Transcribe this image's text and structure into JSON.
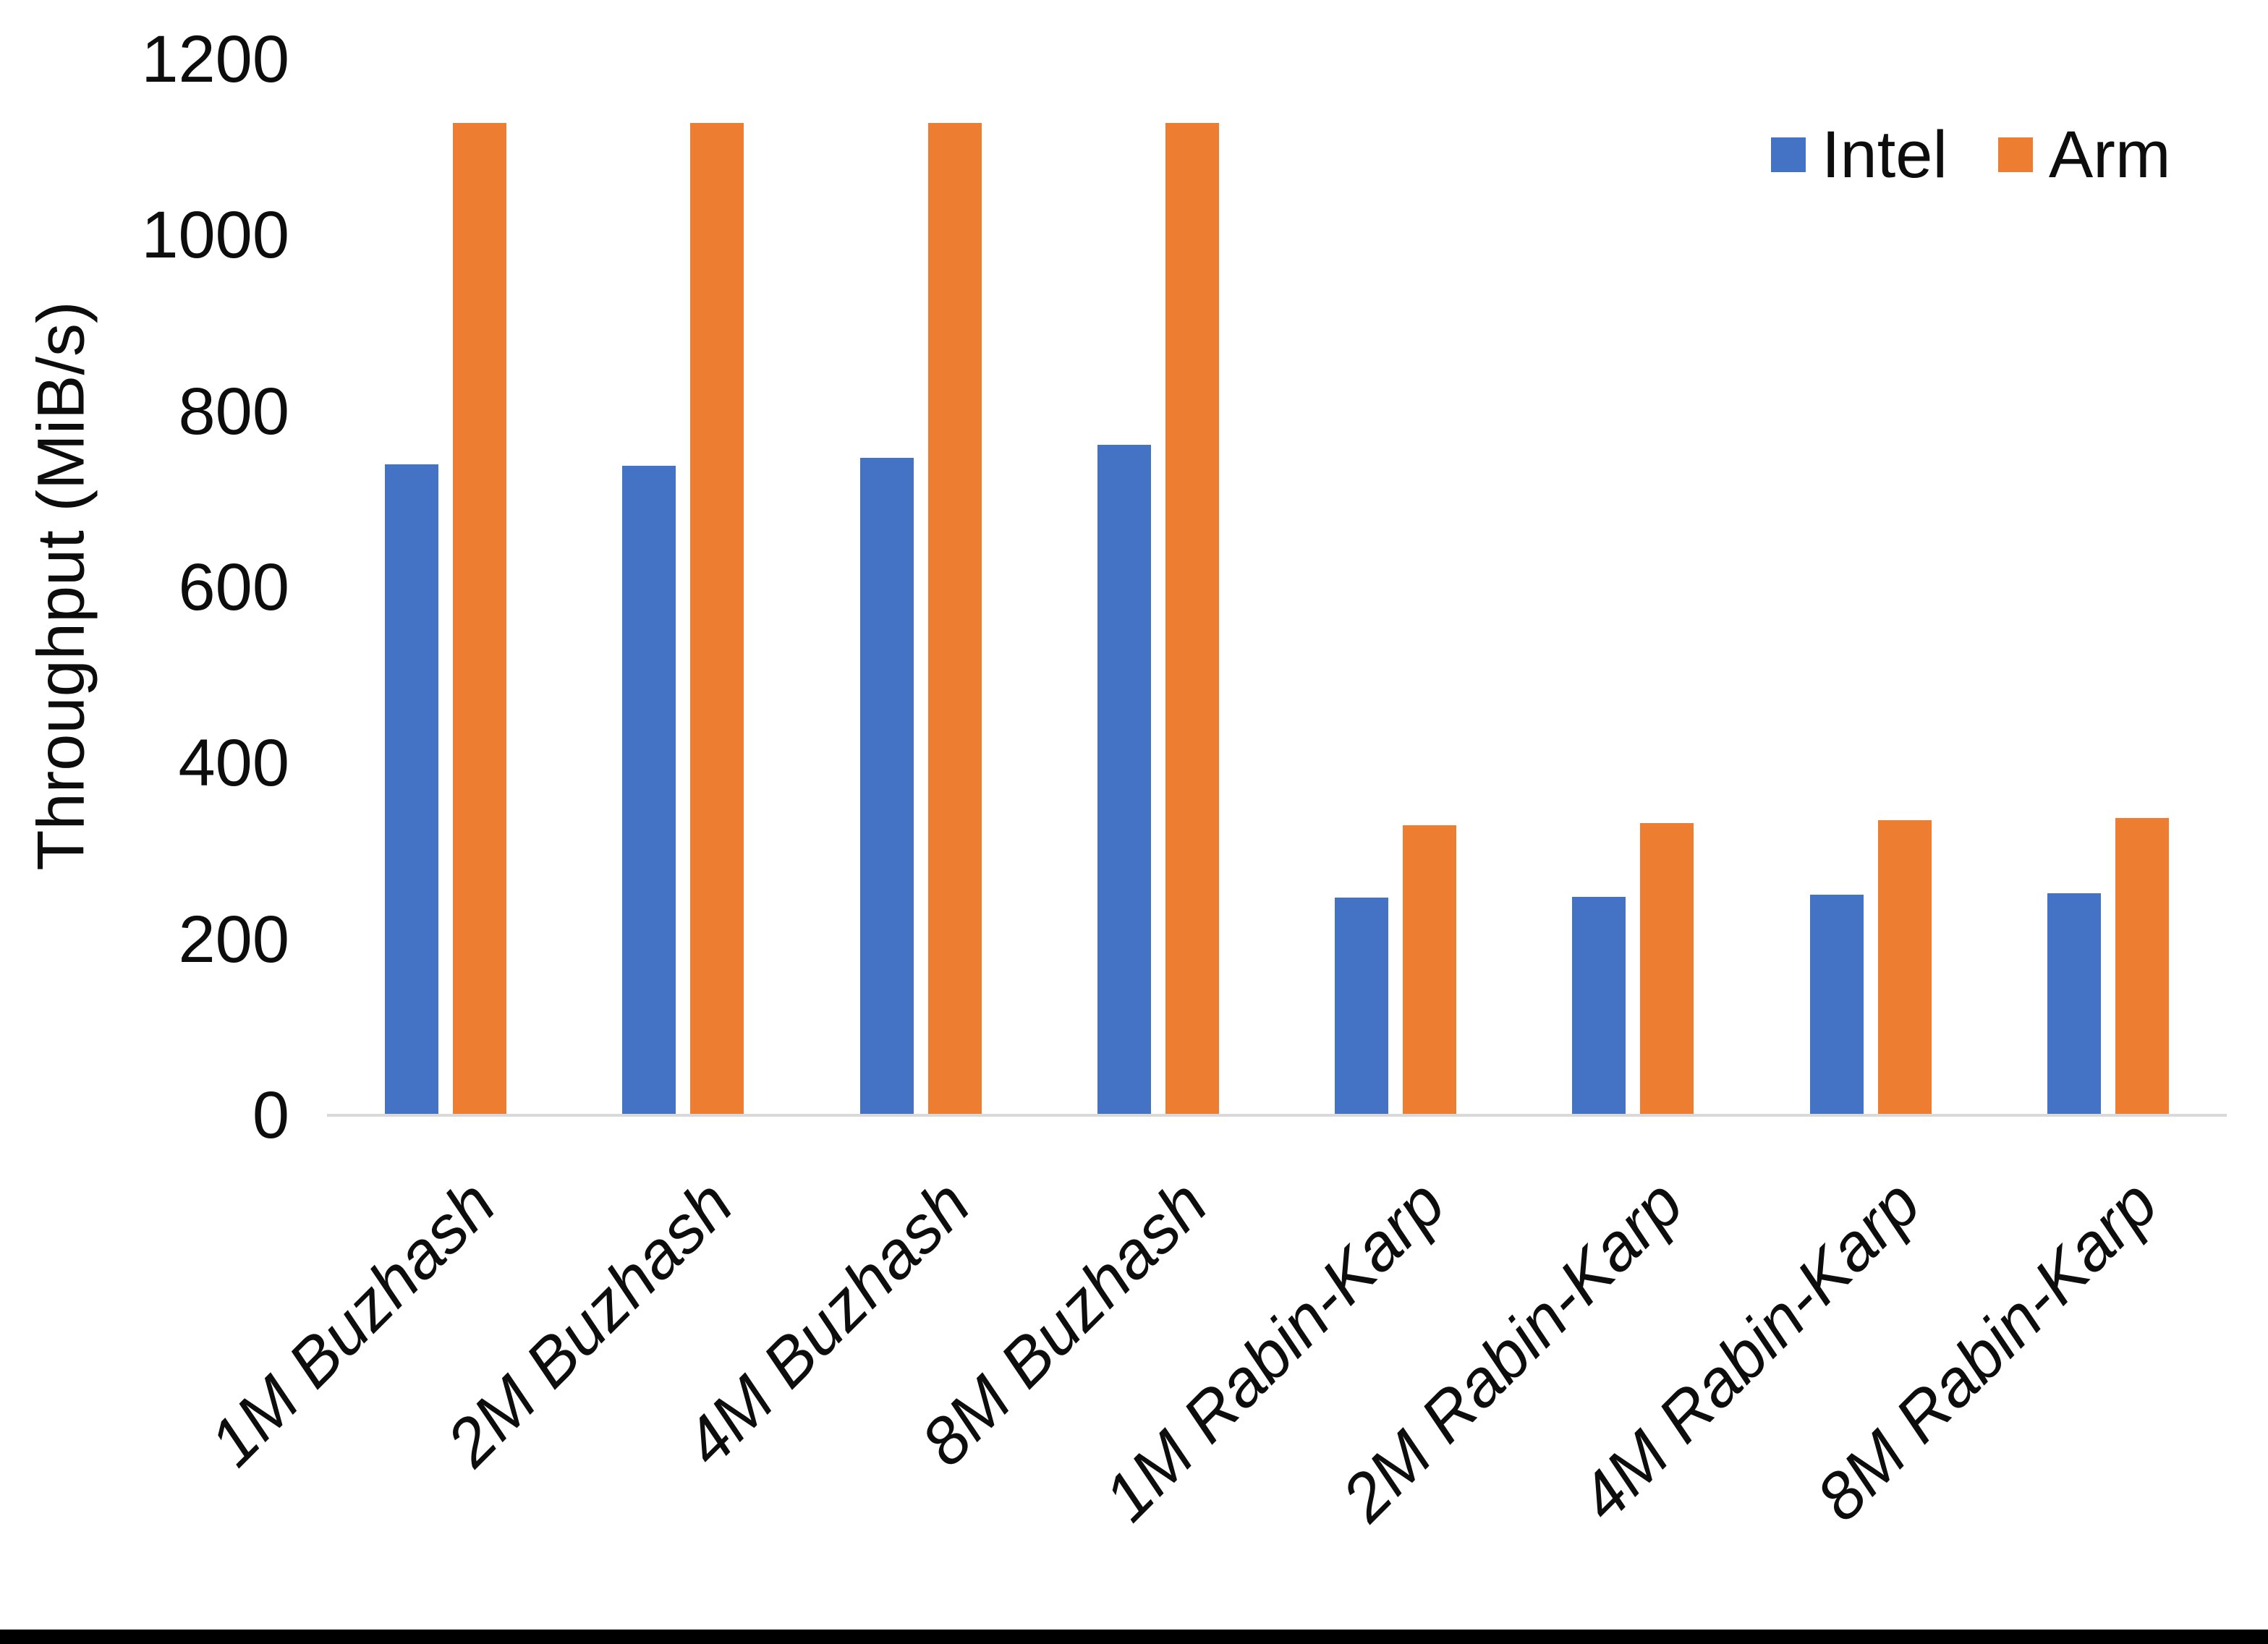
{
  "chart_data": {
    "type": "bar",
    "title": "",
    "ylabel": "Throughput (MiB/s)",
    "xlabel": "",
    "ylim": [
      0,
      1200
    ],
    "yticks": [
      0,
      200,
      400,
      600,
      800,
      1000,
      1200
    ],
    "grid": false,
    "legend_position": "top-right",
    "categories": [
      "1M Buzhash",
      "2M Buzhash",
      "4M Buzhash",
      "8M Buzhash",
      "1M Rabin-Karp",
      "2M Rabin-Karp",
      "4M Rabin-Karp",
      "8M Rabin-Karp"
    ],
    "series": [
      {
        "name": "Intel",
        "color": "#4472C4",
        "values": [
          740,
          738,
          747,
          762,
          247,
          248,
          251,
          252
        ]
      },
      {
        "name": "Arm",
        "color": "#ED7D31",
        "values": [
          1128,
          1128,
          1128,
          1128,
          330,
          332,
          335,
          338
        ]
      }
    ]
  },
  "colors": {
    "axis_line": "#D9D9D9",
    "text": "#0D0D0D",
    "background": "#FFFFFF",
    "bottom_border": "#000000"
  }
}
